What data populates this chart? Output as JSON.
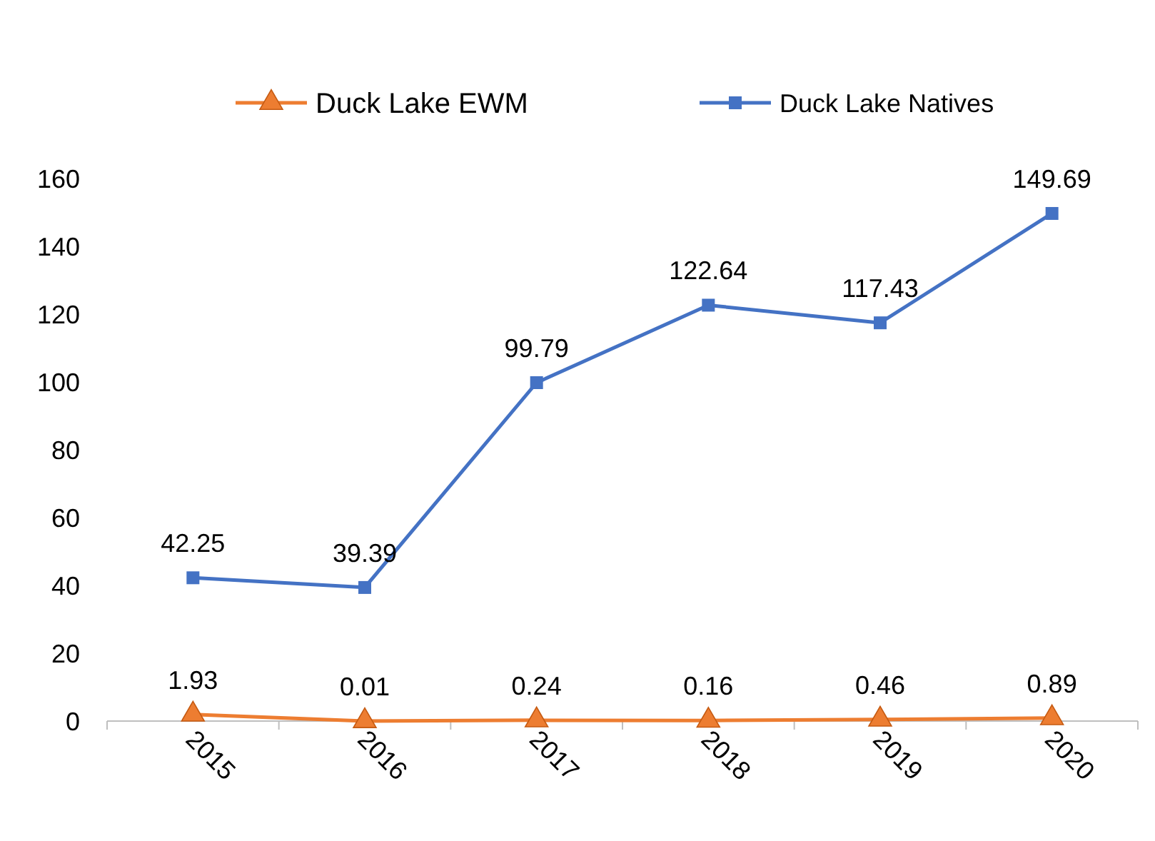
{
  "chart_data": {
    "type": "line",
    "categories": [
      "2015",
      "2016",
      "2017",
      "2018",
      "2019",
      "2020"
    ],
    "series": [
      {
        "name": "Duck Lake EWM",
        "color": "#ed7d31",
        "marker": "triangle",
        "values": [
          1.93,
          0.01,
          0.24,
          0.16,
          0.46,
          0.89
        ]
      },
      {
        "name": "Duck Lake Natives",
        "color": "#4472c4",
        "marker": "square",
        "values": [
          42.25,
          39.39,
          99.79,
          122.64,
          117.43,
          149.69
        ]
      }
    ],
    "ylim": [
      0,
      160
    ],
    "yticks": [
      0,
      20,
      40,
      60,
      80,
      100,
      120,
      140,
      160
    ],
    "grid": false,
    "legend": "top",
    "data_labels": true
  }
}
